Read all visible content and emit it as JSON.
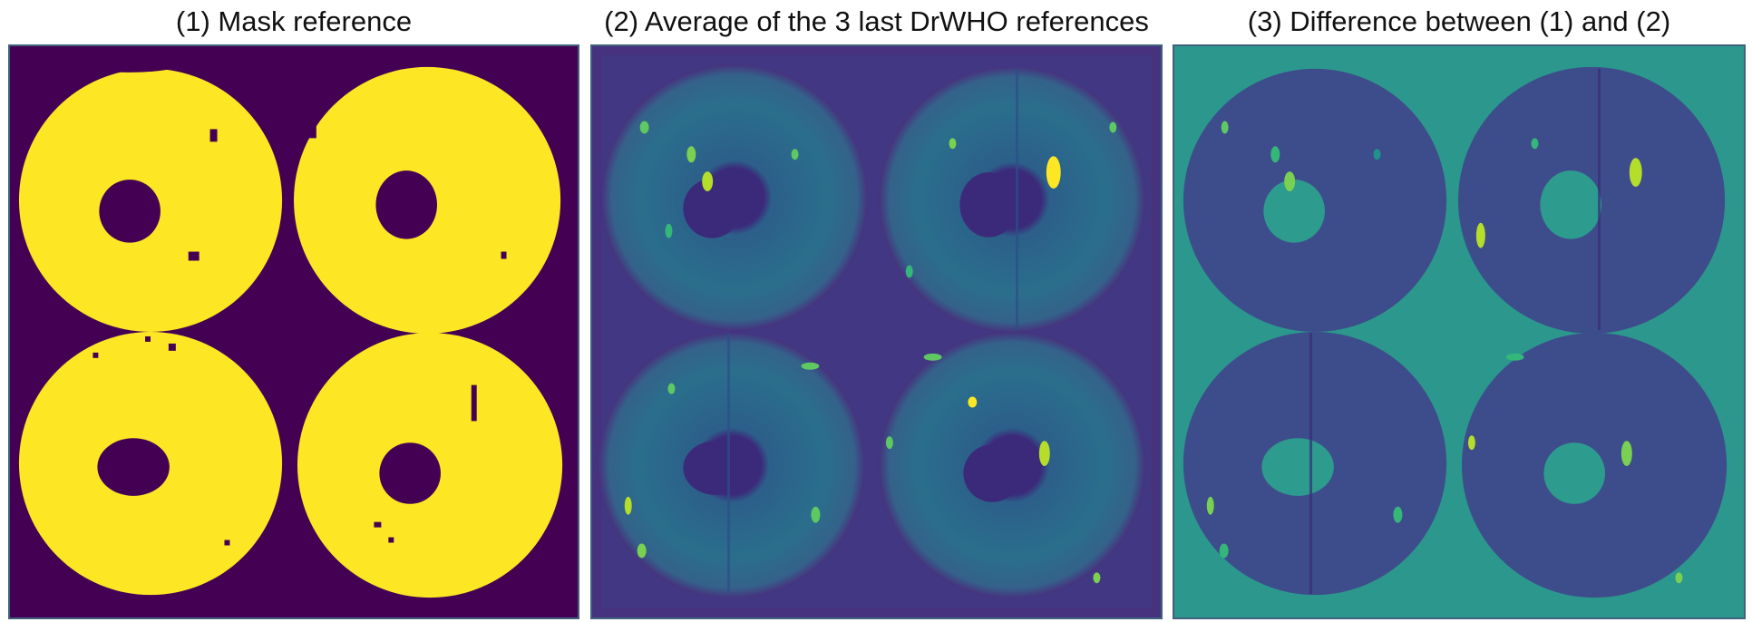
{
  "panels": [
    {
      "title": "(1) Mask reference"
    },
    {
      "title": "(2) Average of the 3 last DrWHO references"
    },
    {
      "title": "(3) Difference between (1) and (2)"
    }
  ],
  "colors": {
    "frame": "#3f627e",
    "viridis_dark": "#440154",
    "viridis_purple": "#3b2a7a",
    "viridis_blue": "#31688e",
    "viridis_teal": "#21918c",
    "viridis_green": "#5ec962",
    "viridis_yellow": "#fde725",
    "panel3_background": "#2d9c8e",
    "panel3_annulus": "#3d4d8b"
  },
  "colormap": "viridis"
}
